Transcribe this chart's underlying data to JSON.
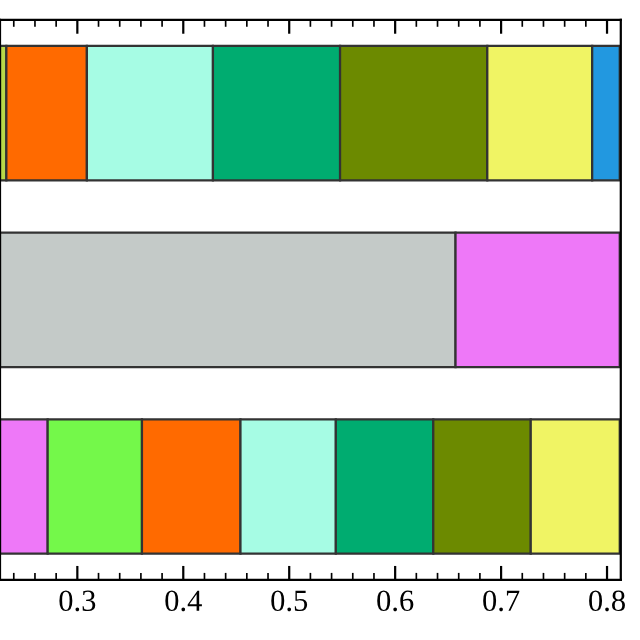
{
  "chart_data": {
    "type": "bar",
    "orientation": "horizontal",
    "categories": [
      null,
      null,
      null
    ],
    "series": [
      {
        "colors": [
          "#b8d848",
          "#c4cac8",
          "#ee78f8"
        ],
        "base": [
          0.227,
          0.227,
          0.227
        ],
        "values": [
          0.006,
          0.43,
          0.045
        ]
      },
      {
        "colors": [
          "#ff6a00",
          "#ee78f8",
          "#74f84a"
        ],
        "base": [
          0.233,
          0.657,
          0.272
        ],
        "values": [
          0.076,
          0.155,
          0.089
        ]
      },
      {
        "colors": [
          "#a6fce4",
          null,
          "#ff6a00"
        ],
        "base": [
          0.309,
          null,
          0.361
        ],
        "values": [
          0.119,
          null,
          0.093
        ]
      },
      {
        "colors": [
          "#00ac70",
          null,
          "#a6fce4"
        ],
        "base": [
          0.428,
          null,
          0.454
        ],
        "values": [
          0.12,
          null,
          0.09
        ]
      },
      {
        "colors": [
          "#6c8a00",
          null,
          "#00ac70"
        ],
        "base": [
          0.548,
          null,
          0.544
        ],
        "values": [
          0.139,
          null,
          0.092
        ]
      },
      {
        "colors": [
          "#f0f464",
          null,
          "#6c8a00"
        ],
        "base": [
          0.687,
          null,
          0.636
        ],
        "values": [
          0.099,
          null,
          0.092
        ]
      },
      {
        "colors": [
          "#2298e0",
          null,
          "#f0f464"
        ],
        "base": [
          0.786,
          null,
          0.728
        ],
        "values": [
          0.026,
          null,
          0.084
        ]
      }
    ],
    "xlim": [
      0.227,
      0.813
    ],
    "xticks": [
      0.3,
      0.4,
      0.5,
      0.6,
      0.7,
      0.8
    ],
    "tick_labels": "x",
    "grid": false,
    "legend": false
  }
}
